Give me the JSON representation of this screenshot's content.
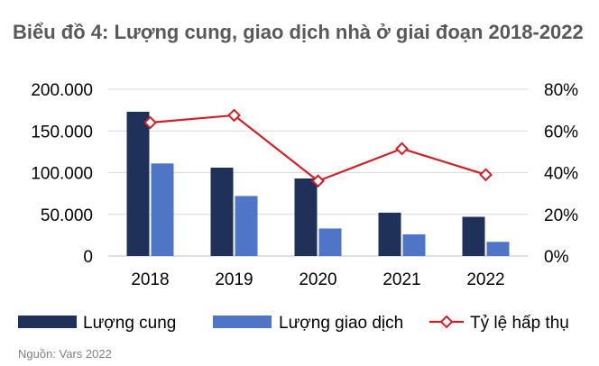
{
  "title": "Biểu đồ 4: Lượng cung, giao dịch nhà ở giai đoạn 2018-2022",
  "source": "Nguồn: Vars 2022",
  "chart_data": {
    "type": "bar",
    "categories": [
      "2018",
      "2019",
      "2020",
      "2021",
      "2022"
    ],
    "series": [
      {
        "name": "Lượng cung",
        "type": "bar",
        "axis": "left",
        "color": "#1f3158",
        "values": [
          173000,
          106000,
          93000,
          52000,
          47000
        ]
      },
      {
        "name": "Lượng giao dịch",
        "type": "bar",
        "axis": "left",
        "color": "#4f75c6",
        "values": [
          111000,
          72000,
          33000,
          26000,
          17000
        ]
      },
      {
        "name": "Tỷ lệ hấp thụ",
        "type": "line",
        "axis": "right",
        "color": "#d01f26",
        "marker": "diamond",
        "values": [
          64,
          67.5,
          36,
          51.5,
          39
        ]
      }
    ],
    "y_left": {
      "min": 0,
      "max": 200000,
      "ticks": [
        "0",
        "50.000",
        "100.000",
        "150.000",
        "200.000"
      ]
    },
    "y_right": {
      "min": 0,
      "max": 80,
      "ticks": [
        "0%",
        "20%",
        "40%",
        "60%",
        "80%"
      ]
    },
    "grid": true,
    "legend": "bottom"
  }
}
